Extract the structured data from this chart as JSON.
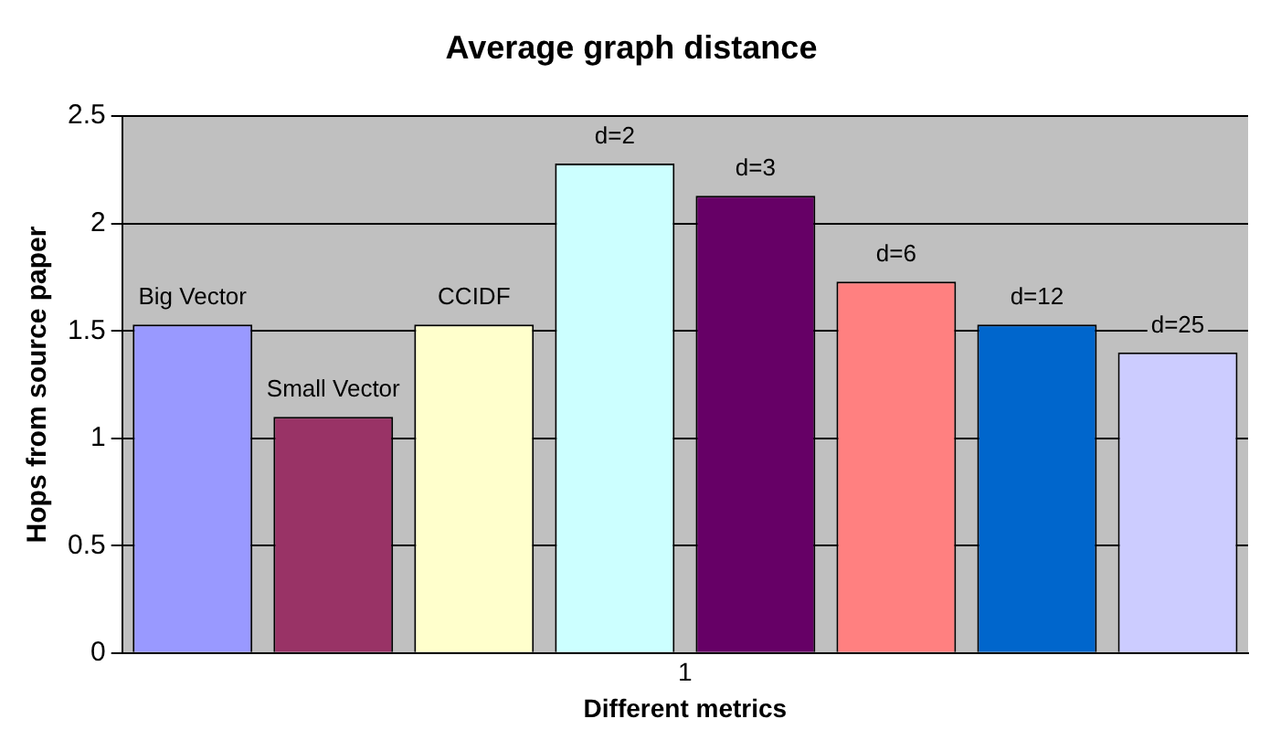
{
  "chart_data": {
    "type": "bar",
    "title": "Average graph distance",
    "xlabel": "Different metrics",
    "ylabel": "Hops from source paper",
    "categories": [
      "1"
    ],
    "series": [
      {
        "name": "Big Vector",
        "color": "#9999ff",
        "values": [
          1.53
        ]
      },
      {
        "name": "Small Vector",
        "color": "#993366",
        "values": [
          1.1
        ]
      },
      {
        "name": "CCIDF",
        "color": "#ffffcc",
        "values": [
          1.53
        ]
      },
      {
        "name": "d=2",
        "color": "#ccffff",
        "values": [
          2.28
        ]
      },
      {
        "name": "d=3",
        "color": "#660066",
        "values": [
          2.13
        ]
      },
      {
        "name": "d=6",
        "color": "#ff8080",
        "values": [
          1.73
        ]
      },
      {
        "name": "d=12",
        "color": "#0066cc",
        "values": [
          1.53
        ]
      },
      {
        "name": "d=25",
        "color": "#ccccff",
        "values": [
          1.4
        ]
      }
    ],
    "ylim": [
      0,
      2.5
    ],
    "yticks": [
      0,
      0.5,
      1,
      1.5,
      2,
      2.5
    ],
    "grid": "y",
    "legend": false
  }
}
